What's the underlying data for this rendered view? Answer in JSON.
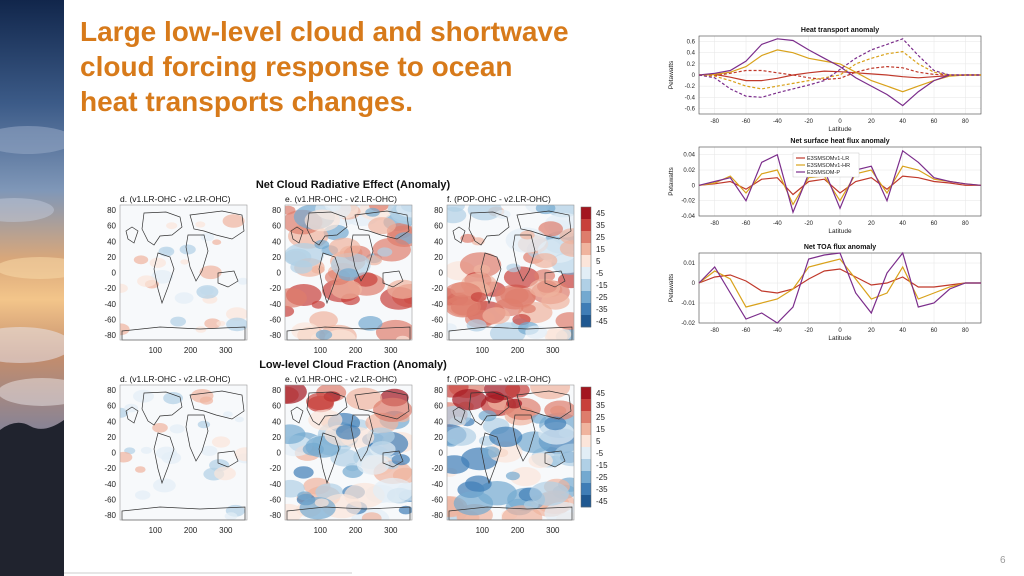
{
  "slide": {
    "title_lines": [
      "Large low-level cloud and shortwave",
      "cloud forcing response to ocean",
      "heat transports changes."
    ],
    "page_number": "6"
  },
  "maps": {
    "rows": [
      {
        "title": "Net Cloud Radiative Effect (Anomaly)",
        "panels": [
          "d. (v1.LR-OHC - v2.LR-OHC)",
          "e. (v1.HR-OHC - v2.LR-OHC)",
          "f. (POP-OHC  - v2.LR-OHC)"
        ]
      },
      {
        "title": "Low-level Cloud Fraction (Anomaly)",
        "panels": [
          "d. (v1.LR-OHC - v2.LR-OHC)",
          "e. (v1.HR-OHC - v2.LR-OHC)",
          "f. (POP-OHC  - v2.LR-OHC)"
        ]
      }
    ],
    "y_ticks": [
      "80",
      "60",
      "40",
      "20",
      "0",
      "-20",
      "-40",
      "-60",
      "-80"
    ],
    "x_ticks": [
      "100",
      "200",
      "300"
    ],
    "colorbar_labels": [
      "45",
      "35",
      "25",
      "15",
      "5",
      "-5",
      "-15",
      "-25",
      "-35",
      "-45"
    ],
    "colorbar_colors": [
      "#a3161f",
      "#c8403b",
      "#de7d6c",
      "#f0b49e",
      "#fbe5da",
      "#e2eef6",
      "#b0d0e6",
      "#74a9d0",
      "#3f7db6",
      "#1f5891"
    ]
  },
  "chart_data": [
    {
      "type": "line",
      "title": "Heat transport anomaly",
      "xlabel": "Latitude",
      "ylabel": "Petawatts",
      "xlim": [
        -90,
        90
      ],
      "ylim": [
        -0.7,
        0.7
      ],
      "x_ticks": [
        "-80",
        "-60",
        "-40",
        "-20",
        "0",
        "20",
        "40",
        "60",
        "80"
      ],
      "y_ticks": [
        "0.6",
        "0.4",
        "0.2",
        "0",
        "-0.2",
        "-0.4",
        "-0.6"
      ],
      "x": [
        -90,
        -80,
        -70,
        -60,
        -50,
        -40,
        -30,
        -20,
        -10,
        0,
        10,
        20,
        30,
        40,
        50,
        60,
        70,
        80,
        90
      ],
      "series": [
        {
          "color": "#c0392b",
          "dash": false,
          "values": [
            0,
            0.01,
            -0.04,
            -0.1,
            -0.1,
            -0.06,
            0,
            0.04,
            0.07,
            0.06,
            0.04,
            0.02,
            0,
            -0.03,
            -0.05,
            -0.03,
            -0.01,
            0,
            0
          ]
        },
        {
          "color": "#d9a21b",
          "dash": false,
          "values": [
            0,
            0.01,
            0.05,
            0.15,
            0.35,
            0.45,
            0.4,
            0.3,
            0.25,
            0.2,
            0.05,
            -0.1,
            -0.2,
            -0.3,
            -0.2,
            -0.1,
            -0.02,
            0,
            0
          ]
        },
        {
          "color": "#7b2d8b",
          "dash": false,
          "values": [
            0,
            0.03,
            0.08,
            0.25,
            0.55,
            0.65,
            0.62,
            0.45,
            0.3,
            0.15,
            -0.05,
            -0.2,
            -0.35,
            -0.55,
            -0.3,
            -0.1,
            0,
            0,
            0
          ]
        },
        {
          "color": "#c0392b",
          "dash": true,
          "values": [
            0,
            -0.01,
            0.03,
            0.08,
            0.08,
            0.04,
            0,
            -0.05,
            -0.08,
            -0.06,
            0.05,
            0.12,
            0.15,
            0.13,
            0.05,
            0.01,
            0,
            0,
            0
          ]
        },
        {
          "color": "#d9a21b",
          "dash": true,
          "values": [
            0,
            -0.02,
            -0.1,
            -0.2,
            -0.25,
            -0.2,
            -0.15,
            -0.1,
            -0.05,
            0,
            0.2,
            0.3,
            0.38,
            0.42,
            0.2,
            0.05,
            0,
            0,
            0
          ]
        },
        {
          "color": "#7b2d8b",
          "dash": true,
          "values": [
            0,
            -0.05,
            -0.25,
            -0.38,
            -0.4,
            -0.32,
            -0.25,
            -0.18,
            -0.1,
            0.1,
            0.3,
            0.45,
            0.55,
            0.65,
            0.35,
            0.08,
            0,
            0,
            0
          ]
        }
      ]
    },
    {
      "type": "line",
      "title": "Net surface heat flux anomaly",
      "xlabel": "Latitude",
      "ylabel": "Petawatts",
      "xlim": [
        -90,
        90
      ],
      "ylim": [
        -0.04,
        0.05
      ],
      "x_ticks": [
        "-80",
        "-60",
        "-40",
        "-20",
        "0",
        "20",
        "40",
        "60",
        "80"
      ],
      "y_ticks": [
        "0.04",
        "0.02",
        "0",
        "-0.02",
        "-0.04"
      ],
      "legend": [
        "E3SMSOMv1-LR",
        "E3SMSOMv1-HR",
        "E3SMSOM-P"
      ],
      "x": [
        -90,
        -80,
        -70,
        -60,
        -50,
        -40,
        -30,
        -20,
        -10,
        0,
        10,
        20,
        30,
        40,
        50,
        60,
        70,
        80,
        90
      ],
      "series": [
        {
          "name": "E3SMSOMv1-LR",
          "color": "#c0392b",
          "values": [
            0,
            0.002,
            0.005,
            -0.005,
            0.008,
            0.01,
            -0.012,
            0.005,
            0.008,
            -0.01,
            0.005,
            0.01,
            -0.005,
            0.012,
            0.01,
            0.005,
            0.003,
            0,
            0
          ]
        },
        {
          "name": "E3SMSOMv1-HR",
          "color": "#d9a21b",
          "values": [
            0,
            0.003,
            0.012,
            -0.01,
            0.015,
            0.02,
            -0.025,
            0.01,
            0.012,
            -0.02,
            0.015,
            0.02,
            -0.01,
            0.025,
            0.02,
            0.008,
            0.005,
            0.002,
            0
          ]
        },
        {
          "name": "E3SM-SOM-P",
          "color": "#7b2d8b",
          "values": [
            0,
            0.005,
            0.01,
            -0.02,
            0.03,
            0.04,
            -0.035,
            0.015,
            0.02,
            -0.03,
            0.02,
            0.025,
            -0.02,
            0.045,
            0.03,
            0.01,
            0.005,
            0.002,
            0
          ]
        }
      ]
    },
    {
      "type": "line",
      "title": "Net TOA flux anomaly",
      "xlabel": "Latitude",
      "ylabel": "Petawatts",
      "xlim": [
        -90,
        90
      ],
      "ylim": [
        -0.02,
        0.015
      ],
      "x_ticks": [
        "-80",
        "-60",
        "-40",
        "-20",
        "0",
        "20",
        "40",
        "60",
        "80"
      ],
      "y_ticks": [
        "0.01",
        "0",
        "-0.01",
        "-0.02"
      ],
      "x": [
        -90,
        -80,
        -70,
        -60,
        -50,
        -40,
        -30,
        -20,
        -10,
        0,
        10,
        20,
        30,
        40,
        50,
        60,
        70,
        80,
        90
      ],
      "series": [
        {
          "color": "#c0392b",
          "values": [
            0,
            0.003,
            0.004,
            0.001,
            -0.004,
            -0.005,
            -0.003,
            0.002,
            0.006,
            0.007,
            0.003,
            -0.001,
            0,
            0.003,
            -0.002,
            -0.002,
            -0.001,
            0,
            0
          ]
        },
        {
          "color": "#d9a21b",
          "values": [
            0,
            0.006,
            0.002,
            -0.012,
            -0.01,
            -0.008,
            -0.003,
            0.008,
            0.01,
            0.012,
            0.002,
            -0.008,
            -0.005,
            0.008,
            -0.008,
            -0.005,
            -0.002,
            0,
            0
          ]
        },
        {
          "color": "#7b2d8b",
          "values": [
            0,
            0.008,
            -0.005,
            -0.018,
            -0.015,
            -0.02,
            -0.012,
            0.012,
            0.014,
            0.015,
            -0.005,
            -0.015,
            0.005,
            0.015,
            -0.012,
            -0.01,
            -0.003,
            0,
            0
          ]
        }
      ]
    }
  ]
}
